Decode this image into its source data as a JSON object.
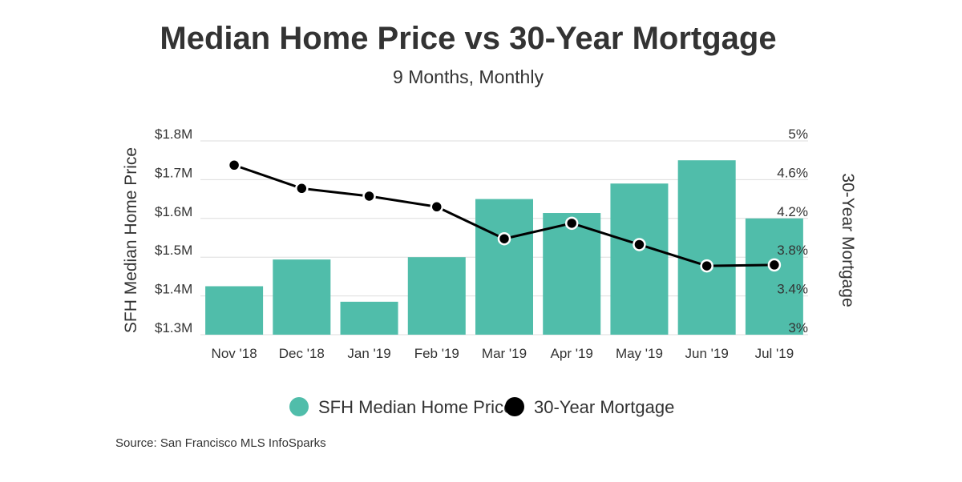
{
  "chart_data": {
    "type": "bar",
    "title": "Median Home Price vs 30-Year Mortgage",
    "subtitle": "9 Months, Monthly",
    "categories": [
      "Nov '18",
      "Dec '18",
      "Jan '19",
      "Feb '19",
      "Mar '19",
      "Apr '19",
      "May '19",
      "Jun '19",
      "Jul '19"
    ],
    "series": [
      {
        "name": "SFH Median Home Price",
        "type": "bar",
        "axis": "left",
        "color": "#50BDAA",
        "values": [
          1425000,
          1494000,
          1385000,
          1500000,
          1650000,
          1614000,
          1690000,
          1750000,
          1600000
        ]
      },
      {
        "name": "30-Year Mortgage",
        "type": "line",
        "axis": "right",
        "color": "#000000",
        "values": [
          4.75,
          4.51,
          4.43,
          4.32,
          3.99,
          4.15,
          3.93,
          3.71,
          3.72
        ]
      }
    ],
    "y_left": {
      "label": "SFH Median Home Price",
      "ylim": [
        1300000,
        1800000
      ],
      "ticks": [
        1300000,
        1400000,
        1500000,
        1600000,
        1700000,
        1800000
      ],
      "tick_labels": [
        "$1.3M",
        "$1.4M",
        "$1.5M",
        "$1.6M",
        "$1.7M",
        "$1.8M"
      ]
    },
    "y_right": {
      "label": "30-Year Mortgage",
      "ylim": [
        3,
        5
      ],
      "ticks": [
        3,
        3.4,
        3.8,
        4.2,
        4.6,
        5
      ],
      "tick_labels": [
        "3%",
        "3.4%",
        "3.8%",
        "4.2%",
        "4.6%",
        "5%"
      ]
    },
    "grid": true,
    "legend": "bottom-center"
  },
  "source": "Source:  San Francisco MLS InfoSparks"
}
